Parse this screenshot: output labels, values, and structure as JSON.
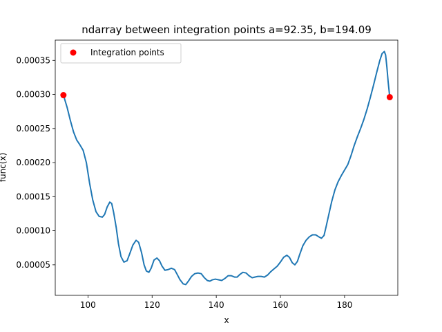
{
  "chart_data": {
    "type": "line",
    "title": "ndarray between integration points a=92.35, b=194.09",
    "xlabel": "x",
    "ylabel": "func(x)",
    "xlim": [
      89.8,
      196.6
    ],
    "ylim": [
      5.2e-06,
      0.00037972
    ],
    "xticks": [
      100,
      120,
      140,
      160,
      180
    ],
    "xtick_labels": [
      "100",
      "120",
      "140",
      "160",
      "180"
    ],
    "yticks": [
      5e-05,
      0.0001,
      0.00015,
      0.0002,
      0.00025,
      0.0003,
      0.00035
    ],
    "ytick_labels": [
      "0.00005",
      "0.00010",
      "0.00015",
      "0.00020",
      "0.00025",
      "0.00030",
      "0.00035"
    ],
    "grid": false,
    "legend_position": "upper left",
    "colors": {
      "line": "#1f77b4",
      "points": "#ff0000"
    },
    "series": [
      {
        "kind": "line",
        "x": [
          92.35,
          93.5,
          94.5,
          95.5,
          96.5,
          97.5,
          98.5,
          99.5,
          100.5,
          101.5,
          102.5,
          103.5,
          104.5,
          105.2,
          106.0,
          106.8,
          107.4,
          108.0,
          108.8,
          109.5,
          110.3,
          111.2,
          112.2,
          113.0,
          114.0,
          115.0,
          115.8,
          116.7,
          117.5,
          118.2,
          119.0,
          119.7,
          120.6,
          121.5,
          122.3,
          123.1,
          124.0,
          125.0,
          126.0,
          127.0,
          127.7,
          128.7,
          129.7,
          130.5,
          131.3,
          132.3,
          133.3,
          134.3,
          135.3,
          136.3,
          137.2,
          138.0,
          138.8,
          139.7,
          140.7,
          141.7,
          142.7,
          143.7,
          144.7,
          145.7,
          146.5,
          147.4,
          148.3,
          149.3,
          150.2,
          151.2,
          152.0,
          153.0,
          154.0,
          155.0,
          156.0,
          157.0,
          158.0,
          159.0,
          160.0,
          161.0,
          162.0,
          162.8,
          163.7,
          164.5,
          165.3,
          166.0,
          167.0,
          168.0,
          169.0,
          170.0,
          171.0,
          172.0,
          172.8,
          173.6,
          174.2,
          175.0,
          176.0,
          177.0,
          178.0,
          179.0,
          180.0,
          181.0,
          182.0,
          183.0,
          184.0,
          185.0,
          186.0,
          187.0,
          188.0,
          189.0,
          190.0,
          191.0,
          191.7,
          192.4,
          192.8,
          193.2,
          193.6,
          194.09
        ],
        "y": [
          0.000299,
          0.000281,
          0.000262,
          0.000245,
          0.000233,
          0.000226,
          0.000218,
          0.0002,
          0.00017,
          0.000145,
          0.000128,
          0.000121,
          0.00012,
          0.000124,
          0.000135,
          0.000142,
          0.00014,
          0.000127,
          0.000105,
          8.1e-05,
          6.2e-05,
          5.4e-05,
          5.6e-05,
          6.6e-05,
          7.9e-05,
          8.6e-05,
          8.3e-05,
          6.8e-05,
          5e-05,
          4.1e-05,
          3.9e-05,
          4.5e-05,
          5.7e-05,
          6e-05,
          5.6e-05,
          4.8e-05,
          4.2e-05,
          4.3e-05,
          4.5e-05,
          4.3e-05,
          3.7e-05,
          2.8e-05,
          2.2e-05,
          2.1e-05,
          2.6e-05,
          3.3e-05,
          3.7e-05,
          3.8e-05,
          3.7e-05,
          3.1e-05,
          2.7e-05,
          2.6e-05,
          2.8e-05,
          2.9e-05,
          2.8e-05,
          2.7e-05,
          3e-05,
          3.4e-05,
          3.4e-05,
          3.2e-05,
          3.2e-05,
          3.6e-05,
          3.9e-05,
          3.8e-05,
          3.4e-05,
          3.1e-05,
          3.2e-05,
          3.3e-05,
          3.3e-05,
          3.2e-05,
          3.5e-05,
          4e-05,
          4.4e-05,
          4.8e-05,
          5.4e-05,
          6.1e-05,
          6.4e-05,
          6.1e-05,
          5.3e-05,
          5e-05,
          5.5e-05,
          6.5e-05,
          7.8e-05,
          8.6e-05,
          9.1e-05,
          9.4e-05,
          9.4e-05,
          9.1e-05,
          8.9e-05,
          9.3e-05,
          0.000105,
          0.000122,
          0.000143,
          0.00016,
          0.000172,
          0.000181,
          0.000189,
          0.000197,
          0.00021,
          0.000225,
          0.000238,
          0.00025,
          0.000263,
          0.000278,
          0.000295,
          0.000313,
          0.000332,
          0.00035,
          0.00036,
          0.000363,
          0.000358,
          0.00034,
          0.000318,
          0.000296
        ]
      },
      {
        "kind": "scatter",
        "name": "Integration points",
        "x": [
          92.35,
          194.09
        ],
        "y": [
          0.000299,
          0.000296
        ]
      }
    ]
  }
}
